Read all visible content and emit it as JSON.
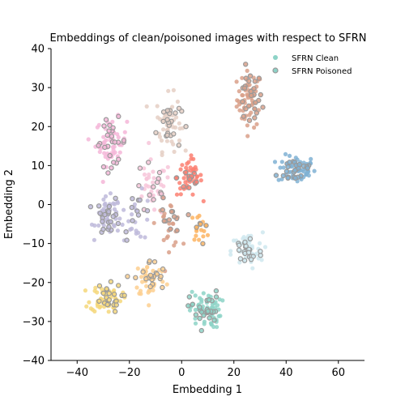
{
  "chart_data": {
    "type": "scatter",
    "title": "Embeddings of clean/poisoned images with respect to SFRN",
    "xlabel": "Embedding 1",
    "ylabel": "Embedding 2",
    "xlim": [
      -50,
      70
    ],
    "ylim": [
      -40,
      40
    ],
    "xticks": [
      -40,
      -20,
      0,
      20,
      40,
      60
    ],
    "yticks": [
      -40,
      -30,
      -20,
      -10,
      0,
      10,
      20,
      30,
      40
    ],
    "grid": false,
    "legend_position": "top-right",
    "legend": [
      {
        "name": "SFRN Clean",
        "color": "#8dd3c7",
        "style": "filled"
      },
      {
        "name": "SFRN Poisoned",
        "color": "#8dd3c7",
        "edge_color": "#999999",
        "style": "ring"
      }
    ],
    "clusters": [
      {
        "center": [
          26,
          27
        ],
        "spread": [
          4,
          6
        ],
        "color": "#d9a08a",
        "clean": 55,
        "poisoned": 25
      },
      {
        "center": [
          44,
          9
        ],
        "spread": [
          6,
          3
        ],
        "color": "#80b1d3",
        "clean": 55,
        "poisoned": 25
      },
      {
        "center": [
          -5,
          21
        ],
        "spread": [
          4,
          6
        ],
        "color": "#e5cfc4",
        "clean": 50,
        "poisoned": 22
      },
      {
        "center": [
          -27,
          16
        ],
        "spread": [
          5,
          5
        ],
        "color": "#f4b6d8",
        "clean": 50,
        "poisoned": 25
      },
      {
        "center": [
          3,
          7
        ],
        "spread": [
          4,
          4
        ],
        "color": "#fb8072",
        "clean": 45,
        "poisoned": 12
      },
      {
        "center": [
          -11,
          4
        ],
        "spread": [
          6,
          6
        ],
        "color": "#f7c6d9",
        "clean": 35,
        "poisoned": 12
      },
      {
        "center": [
          -28,
          -3
        ],
        "spread": [
          4,
          4
        ],
        "color": "#bebada",
        "clean": 45,
        "poisoned": 22
      },
      {
        "center": [
          -17,
          -3
        ],
        "spread": [
          5,
          5
        ],
        "color": "#bebada",
        "clean": 20,
        "poisoned": 10
      },
      {
        "center": [
          -5,
          -5
        ],
        "spread": [
          4,
          5
        ],
        "color": "#d9a08a",
        "clean": 25,
        "poisoned": 12
      },
      {
        "center": [
          7,
          -6
        ],
        "spread": [
          3,
          3
        ],
        "color": "#fdb462",
        "clean": 15,
        "poisoned": 5
      },
      {
        "center": [
          25,
          -12
        ],
        "spread": [
          5,
          4
        ],
        "color": "#cfe8ee",
        "clean": 45,
        "poisoned": 22
      },
      {
        "center": [
          -12,
          -19
        ],
        "spread": [
          5,
          4
        ],
        "color": "#fdcf8f",
        "clean": 40,
        "poisoned": 20
      },
      {
        "center": [
          -29,
          -24
        ],
        "spread": [
          5,
          3
        ],
        "color": "#f5d77a",
        "clean": 55,
        "poisoned": 22
      },
      {
        "center": [
          9,
          -27
        ],
        "spread": [
          5,
          4
        ],
        "color": "#8dd3c7",
        "clean": 55,
        "poisoned": 28
      }
    ]
  }
}
